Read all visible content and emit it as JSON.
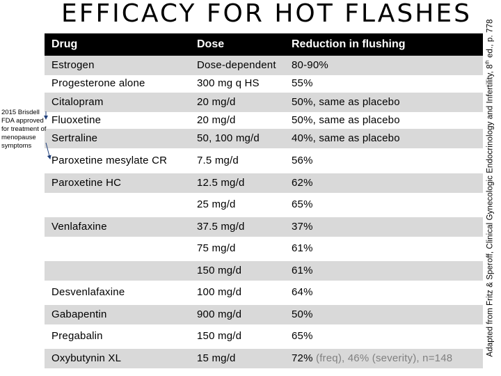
{
  "title": "EFFICACY FOR HOT FLASHES",
  "table": {
    "headers": [
      "Drug",
      "Dose",
      "Reduction in flushing"
    ],
    "rows": [
      {
        "drug": "Estrogen",
        "dose": "Dose-dependent",
        "reduction": "80-90%",
        "note": ""
      },
      {
        "drug": "Progesterone alone",
        "dose": "300 mg q HS",
        "reduction": "55%",
        "note": ""
      },
      {
        "drug": "Citalopram",
        "dose": "20 mg/d",
        "reduction": "50%, same as placebo",
        "note": ""
      },
      {
        "drug": "Fluoxetine",
        "dose": "20 mg/d",
        "reduction": "50%, same as placebo",
        "note": ""
      },
      {
        "drug": "Sertraline",
        "dose": "50, 100 mg/d",
        "reduction": "40%, same as placebo",
        "note": ""
      },
      {
        "drug": "Paroxetine mesylate CR",
        "dose": "7.5 mg/d",
        "reduction": "56%",
        "note": ""
      },
      {
        "drug": "Paroxetine HC",
        "dose": "12.5 mg/d",
        "reduction": "62%",
        "note": ""
      },
      {
        "drug": "",
        "dose": "25 mg/d",
        "reduction": "65%",
        "note": ""
      },
      {
        "drug": "Venlafaxine",
        "dose": "37.5 mg/d",
        "reduction": "37%",
        "note": ""
      },
      {
        "drug": "",
        "dose": "75 mg/d",
        "reduction": "61%",
        "note": ""
      },
      {
        "drug": "",
        "dose": "150 mg/d",
        "reduction": "61%",
        "note": ""
      },
      {
        "drug": "Desvenlafaxine",
        "dose": "100 mg/d",
        "reduction": "64%",
        "note": ""
      },
      {
        "drug": "Gabapentin",
        "dose": "900 mg/d",
        "reduction": "50%",
        "note": ""
      },
      {
        "drug": "Pregabalin",
        "dose": "150 mg/d",
        "reduction": "65%",
        "note": ""
      },
      {
        "drug": "Oxybutynin XL",
        "dose": "15 mg/d",
        "reduction": "72%",
        "note": " (freq), 46% (severity), n=148"
      }
    ]
  },
  "annotation": "2015 Brisdell FDA approved for treatment of menopause symptoms",
  "source_prefix": "Adapted from Fritz & Speroff, Clinical Gynecologic Endocrinology and Infertility, 8",
  "source_sup": "th",
  "source_suffix": " ed., p. 778",
  "colors": {
    "header_bg": "#000000",
    "alt_row": "#d9d9d9",
    "note_grey": "#808080"
  }
}
